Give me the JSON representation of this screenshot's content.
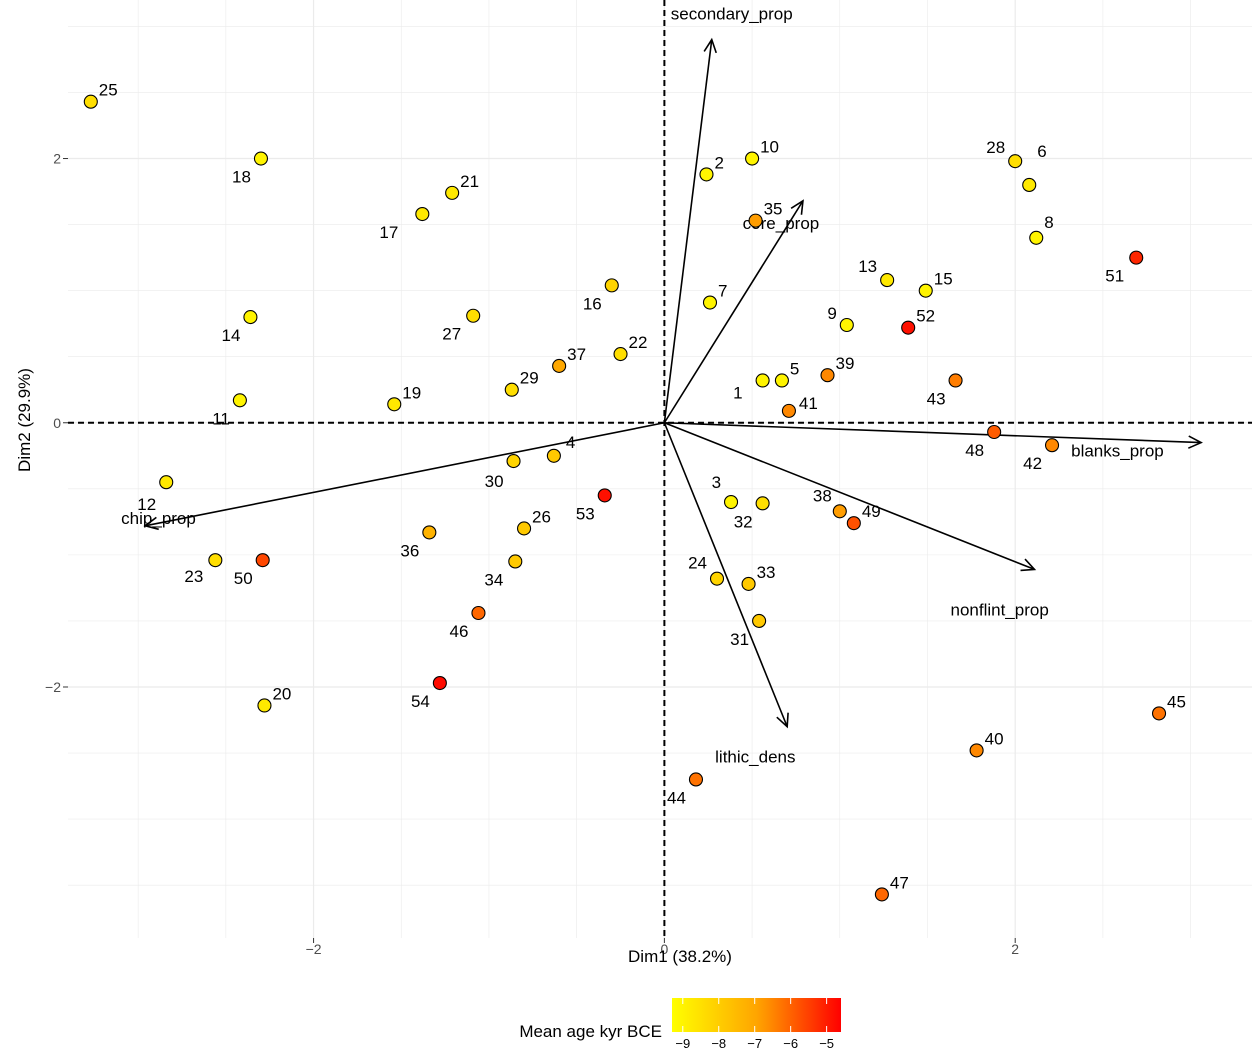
{
  "chart_data": {
    "type": "scatter",
    "subtype": "pca-biplot",
    "xlabel": "Dim1 (38.2%)",
    "ylabel": "Dim2 (29.9%)",
    "xlim": [
      -3.4,
      3.35
    ],
    "ylim": [
      -3.9,
      3.2
    ],
    "xticks": [
      -2,
      0,
      2
    ],
    "yticks": [
      -2,
      0,
      2
    ],
    "x_tick_labels": [
      "−2",
      "0",
      "2"
    ],
    "y_tick_labels": [
      "−2",
      "0",
      "2"
    ],
    "grid": true,
    "reference_lines": {
      "x": 0,
      "y": 0,
      "style": "dashed"
    },
    "color_scale": {
      "title": "Mean age kyr BCE",
      "min": -9.3,
      "max": -4.6,
      "low_color": "#ffff00",
      "high_color": "#ff0000",
      "ticks": [
        -9,
        -8,
        -7,
        -6,
        -5
      ],
      "tick_labels": [
        "−9",
        "−8",
        "−7",
        "−6",
        "−5"
      ],
      "placement": "bottom"
    },
    "points": [
      {
        "label": "1",
        "x": 0.56,
        "y": 0.32,
        "age": -9.1
      },
      {
        "label": "2",
        "x": 0.24,
        "y": 1.88,
        "age": -9.1
      },
      {
        "label": "3",
        "x": 0.38,
        "y": -0.6,
        "age": -9.1
      },
      {
        "label": "4",
        "x": -0.63,
        "y": -0.25,
        "age": -8.3
      },
      {
        "label": "5",
        "x": 0.67,
        "y": 0.32,
        "age": -9.1
      },
      {
        "label": "6",
        "x": 2.08,
        "y": 1.8,
        "age": -8.9
      },
      {
        "label": "7",
        "x": 0.26,
        "y": 0.91,
        "age": -9.1
      },
      {
        "label": "8",
        "x": 2.12,
        "y": 1.4,
        "age": -9.1
      },
      {
        "label": "9",
        "x": 1.04,
        "y": 0.74,
        "age": -9.1
      },
      {
        "label": "10",
        "x": 0.5,
        "y": 2.0,
        "age": -9.1
      },
      {
        "label": "11",
        "x": -2.42,
        "y": 0.17,
        "age": -9.1
      },
      {
        "label": "12",
        "x": -2.84,
        "y": -0.45,
        "age": -8.9
      },
      {
        "label": "13",
        "x": 1.27,
        "y": 1.08,
        "age": -8.9
      },
      {
        "label": "14",
        "x": -2.36,
        "y": 0.8,
        "age": -9.1
      },
      {
        "label": "15",
        "x": 1.49,
        "y": 1.0,
        "age": -9.1
      },
      {
        "label": "16",
        "x": -0.3,
        "y": 1.04,
        "age": -8.5
      },
      {
        "label": "17",
        "x": -1.38,
        "y": 1.58,
        "age": -8.9
      },
      {
        "label": "18",
        "x": -2.3,
        "y": 2.0,
        "age": -9.1
      },
      {
        "label": "19",
        "x": -1.54,
        "y": 0.14,
        "age": -8.9
      },
      {
        "label": "20",
        "x": -2.28,
        "y": -2.14,
        "age": -8.9
      },
      {
        "label": "21",
        "x": -1.21,
        "y": 1.74,
        "age": -8.9
      },
      {
        "label": "22",
        "x": -0.25,
        "y": 0.52,
        "age": -8.7
      },
      {
        "label": "23",
        "x": -2.56,
        "y": -1.04,
        "age": -8.7
      },
      {
        "label": "24",
        "x": 0.3,
        "y": -1.18,
        "age": -8.5
      },
      {
        "label": "25",
        "x": -3.27,
        "y": 2.43,
        "age": -8.7
      },
      {
        "label": "26",
        "x": -0.8,
        "y": -0.8,
        "age": -8.3
      },
      {
        "label": "27",
        "x": -1.09,
        "y": 0.81,
        "age": -8.7
      },
      {
        "label": "28",
        "x": 2.0,
        "y": 1.98,
        "age": -8.7
      },
      {
        "label": "29",
        "x": -0.87,
        "y": 0.25,
        "age": -8.7
      },
      {
        "label": "30",
        "x": -0.86,
        "y": -0.29,
        "age": -8.5
      },
      {
        "label": "31",
        "x": 0.54,
        "y": -1.5,
        "age": -8.3
      },
      {
        "label": "32",
        "x": 0.56,
        "y": -0.61,
        "age": -8.7
      },
      {
        "label": "33",
        "x": 0.48,
        "y": -1.22,
        "age": -8.3
      },
      {
        "label": "34",
        "x": -0.85,
        "y": -1.05,
        "age": -8.3
      },
      {
        "label": "35",
        "x": 0.52,
        "y": 1.53,
        "age": -7.5
      },
      {
        "label": "36",
        "x": -1.34,
        "y": -0.83,
        "age": -7.9
      },
      {
        "label": "37",
        "x": -0.6,
        "y": 0.43,
        "age": -7.7
      },
      {
        "label": "38",
        "x": 1.0,
        "y": -0.67,
        "age": -7.5
      },
      {
        "label": "39",
        "x": 0.93,
        "y": 0.36,
        "age": -7.1
      },
      {
        "label": "40",
        "x": 1.78,
        "y": -2.48,
        "age": -7.1
      },
      {
        "label": "41",
        "x": 0.71,
        "y": 0.09,
        "age": -7.1
      },
      {
        "label": "42",
        "x": 2.21,
        "y": -0.17,
        "age": -7.1
      },
      {
        "label": "43",
        "x": 1.66,
        "y": 0.32,
        "age": -6.9
      },
      {
        "label": "44",
        "x": 0.18,
        "y": -2.7,
        "age": -6.7
      },
      {
        "label": "45",
        "x": 2.82,
        "y": -2.2,
        "age": -6.7
      },
      {
        "label": "46",
        "x": -1.06,
        "y": -1.44,
        "age": -6.5
      },
      {
        "label": "47",
        "x": 1.24,
        "y": -3.57,
        "age": -6.5
      },
      {
        "label": "48",
        "x": 1.88,
        "y": -0.07,
        "age": -6.3
      },
      {
        "label": "49",
        "x": 1.08,
        "y": -0.76,
        "age": -6.1
      },
      {
        "label": "50",
        "x": -2.29,
        "y": -1.04,
        "age": -5.9
      },
      {
        "label": "51",
        "x": 2.69,
        "y": 1.25,
        "age": -5.3
      },
      {
        "label": "52",
        "x": 1.39,
        "y": 0.72,
        "age": -4.9
      },
      {
        "label": "53",
        "x": -0.34,
        "y": -0.55,
        "age": -4.9
      },
      {
        "label": "54",
        "x": -1.28,
        "y": -1.97,
        "age": -4.8
      }
    ],
    "variables": [
      {
        "label": "secondary_prop",
        "x": 0.27,
        "y": 2.9
      },
      {
        "label": "core_prop",
        "x": 0.79,
        "y": 1.68
      },
      {
        "label": "blanks_prop",
        "x": 3.06,
        "y": -0.15
      },
      {
        "label": "nonflint_prop",
        "x": 2.11,
        "y": -1.11
      },
      {
        "label": "lithic_dens",
        "x": 0.7,
        "y": -2.3
      },
      {
        "label": "chip_prop",
        "x": -2.96,
        "y": -0.78
      }
    ]
  }
}
